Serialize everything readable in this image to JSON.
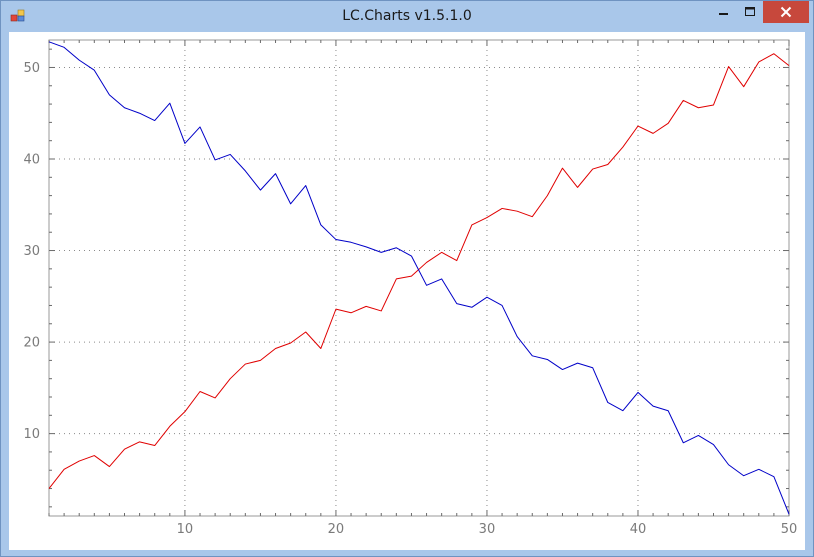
{
  "window": {
    "title": "LC.Charts v1.5.1.0",
    "controls": {
      "minimize_icon": "minimize-icon",
      "maximize_icon": "maximize-icon",
      "close_icon": "close-icon"
    }
  },
  "chart_data": {
    "type": "line",
    "title": "",
    "xlabel": "",
    "ylabel": "",
    "xlim": [
      1,
      50
    ],
    "ylim": [
      1,
      53
    ],
    "x_ticks": [
      10,
      20,
      30,
      40,
      50
    ],
    "y_ticks": [
      10,
      20,
      30,
      40,
      50
    ],
    "x_tick_labels": [
      "10",
      "20",
      "30",
      "40",
      "50"
    ],
    "y_tick_labels": [
      "10",
      "20",
      "30",
      "40",
      "50"
    ],
    "grid": true,
    "grid_style": "dotted",
    "legend": "none",
    "x": [
      1,
      2,
      3,
      4,
      5,
      6,
      7,
      8,
      9,
      10,
      11,
      12,
      13,
      14,
      15,
      16,
      17,
      18,
      19,
      20,
      21,
      22,
      23,
      24,
      25,
      26,
      27,
      28,
      29,
      30,
      31,
      32,
      33,
      34,
      35,
      36,
      37,
      38,
      39,
      40,
      41,
      42,
      43,
      44,
      45,
      46,
      47,
      48,
      49,
      50
    ],
    "series": [
      {
        "color": "#e00000",
        "values": [
          4.0,
          6.1,
          7.0,
          7.6,
          6.4,
          8.3,
          9.1,
          8.7,
          10.8,
          12.4,
          14.6,
          13.9,
          16.0,
          17.6,
          18.0,
          19.3,
          19.9,
          21.1,
          19.3,
          23.6,
          23.2,
          23.9,
          23.4,
          26.9,
          27.2,
          28.7,
          29.8,
          28.9,
          32.8,
          33.6,
          34.6,
          34.3,
          33.7,
          36.0,
          39.0,
          36.9,
          38.9,
          39.4,
          41.3,
          43.6,
          42.8,
          43.9,
          46.4,
          45.6,
          45.9,
          50.1,
          47.9,
          50.6,
          51.5,
          50.2
        ]
      },
      {
        "color": "#0000c8",
        "values": [
          52.8,
          52.2,
          50.8,
          49.7,
          47.0,
          45.6,
          45.0,
          44.2,
          46.1,
          41.7,
          43.5,
          39.9,
          40.5,
          38.7,
          36.6,
          38.4,
          35.1,
          37.1,
          32.8,
          31.2,
          30.9,
          30.4,
          29.8,
          30.3,
          29.4,
          26.2,
          26.9,
          24.2,
          23.8,
          24.9,
          24.0,
          20.6,
          18.5,
          18.1,
          17.0,
          17.7,
          17.2,
          13.4,
          12.5,
          14.5,
          13.0,
          12.5,
          9.0,
          9.8,
          8.8,
          6.6,
          5.4,
          6.1,
          5.3,
          1.2
        ]
      }
    ]
  }
}
